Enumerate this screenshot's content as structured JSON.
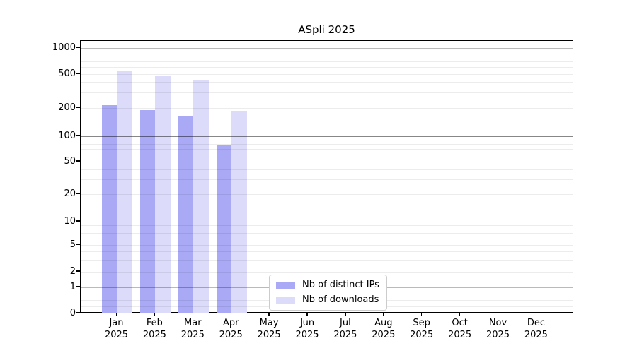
{
  "chart_data": {
    "type": "bar",
    "title": "ASpli 2025",
    "categories": [
      "Jan",
      "Feb",
      "Mar",
      "Apr",
      "May",
      "Jun",
      "Jul",
      "Aug",
      "Sep",
      "Oct",
      "Nov",
      "Dec"
    ],
    "x_axis": {
      "year_line": "2025"
    },
    "series": [
      {
        "name": "Nb of distinct IPs",
        "color": "#a9a9f6",
        "values": [
          215,
          190,
          165,
          80,
          0,
          0,
          0,
          0,
          0,
          0,
          0,
          0
        ]
      },
      {
        "name": "Nb of downloads",
        "color": "#dcdcfa",
        "values": [
          550,
          470,
          420,
          185,
          0,
          0,
          0,
          0,
          0,
          0,
          0,
          0
        ]
      }
    ],
    "y_axis": {
      "scale": "log-like (symlog, linear below 1)",
      "tick_labels": [
        "1000",
        "500",
        "200",
        "100",
        "50",
        "20",
        "10",
        "5",
        "2",
        "1",
        "0"
      ],
      "tick_values": [
        1000,
        500,
        200,
        100,
        50,
        20,
        10,
        5,
        2,
        1,
        0
      ],
      "ylim": [
        0,
        1200
      ],
      "grid": true
    },
    "legend": {
      "position": "lower-center",
      "entries": [
        "Nb of distinct IPs",
        "Nb of downloads"
      ]
    }
  }
}
